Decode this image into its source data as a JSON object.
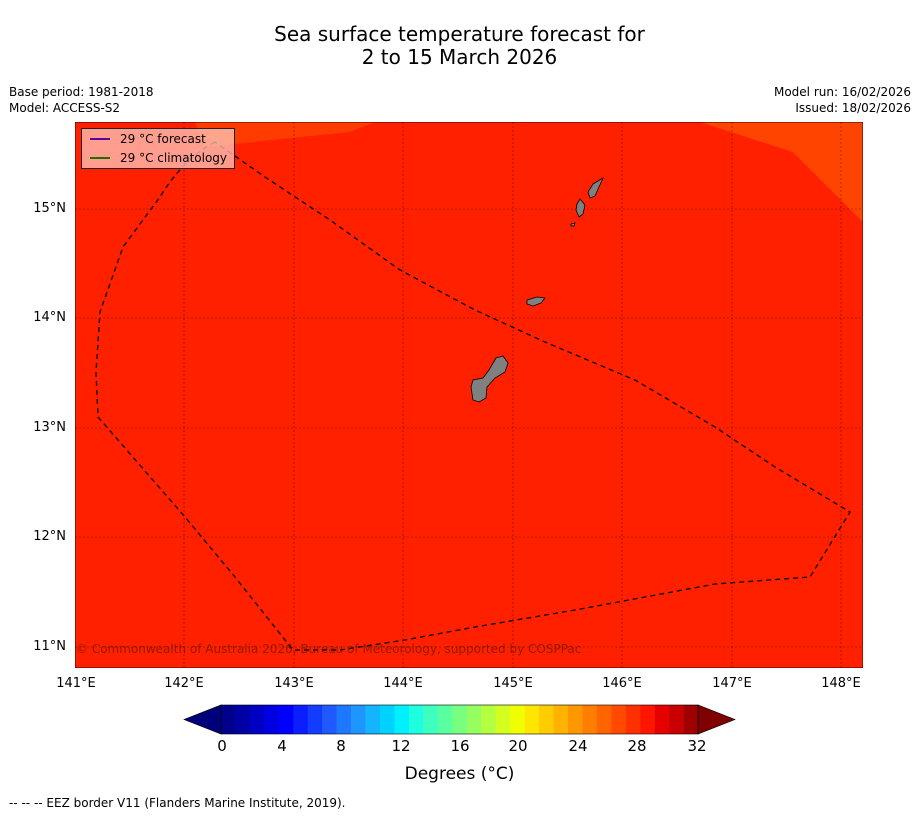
{
  "title": {
    "line1": "Sea surface temperature forecast for",
    "line2": "2 to 15 March 2026"
  },
  "meta": {
    "base_period": "Base period: 1981-2018",
    "model": "Model: ACCESS-S2",
    "model_run": "Model run: 16/02/2026",
    "issued": "Issued: 18/02/2026"
  },
  "map": {
    "latitude_labels": [
      "15°N",
      "14°N",
      "13°N",
      "12°N",
      "11°N"
    ],
    "longitude_labels": [
      "141°E",
      "142°E",
      "143°E",
      "144°E",
      "145°E",
      "146°E",
      "147°E",
      "148°E"
    ],
    "colors": {
      "sea_main": "#ff2000",
      "sea_warm_band": "#ff3c00",
      "land": "#808080",
      "eez_border": "#000000"
    }
  },
  "legend": {
    "forecast_label": "29 °C  forecast",
    "forecast_color": "#5a00a0",
    "climatology_label": "29 °C  climatology",
    "climatology_color": "#207000"
  },
  "copyright": "© Commonwealth of Australia 2026, Bureau of Meteorology, supported by COSPPac",
  "colorbar": {
    "tick_labels": [
      "0",
      "4",
      "8",
      "12",
      "16",
      "20",
      "24",
      "28",
      "32"
    ],
    "title": "Degrees (°C)",
    "colors": [
      "#00008c",
      "#0000a6",
      "#0000c4",
      "#0000e2",
      "#0000ff",
      "#0a1eff",
      "#143cff",
      "#1e5aff",
      "#1e78ff",
      "#1e96ff",
      "#14b4ff",
      "#00d2ff",
      "#00f0ff",
      "#1effe0",
      "#3cffc0",
      "#5affa0",
      "#78ff80",
      "#96ff60",
      "#b4ff40",
      "#d2ff20",
      "#f0ff00",
      "#ffe600",
      "#ffcc00",
      "#ffb200",
      "#ff9800",
      "#ff7e00",
      "#ff6400",
      "#ff4a00",
      "#ff3000",
      "#ff1600",
      "#e60000",
      "#c80000",
      "#a00000"
    ],
    "under_color": "#00007a",
    "over_color": "#800000"
  },
  "footnote": "--  --  -- EEZ border V11 (Flanders Marine Institute, 2019)."
}
